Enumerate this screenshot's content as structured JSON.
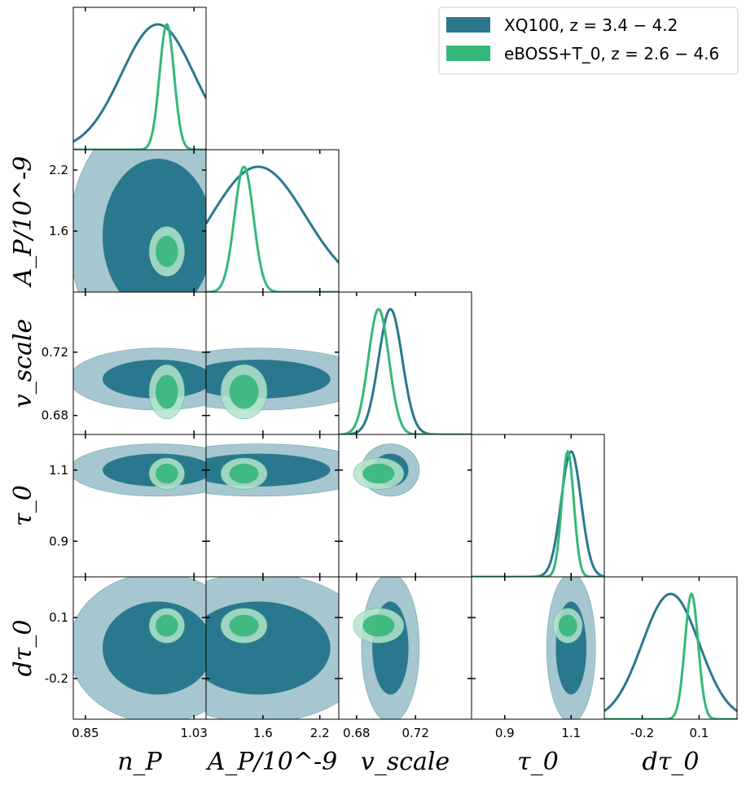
{
  "chart_data": {
    "type": "corner",
    "params": [
      {
        "label": "n_P",
        "ticks": [
          "0.85",
          "1.03"
        ],
        "tick_values": [
          0.85,
          1.03
        ],
        "range": [
          0.83,
          1.05
        ]
      },
      {
        "label": "A_P/10^-9",
        "ticks": [
          "1.6",
          "2.2"
        ],
        "tick_values": [
          1.6,
          2.2
        ],
        "range": [
          1.0,
          2.4
        ]
      },
      {
        "label": "v_scale",
        "ticks": [
          "0.68",
          "0.72"
        ],
        "tick_values": [
          0.68,
          0.72
        ],
        "range": [
          0.668,
          0.758
        ]
      },
      {
        "label": "τ_0",
        "ticks": [
          "0.9",
          "1.1"
        ],
        "tick_values": [
          0.9,
          1.1
        ],
        "range": [
          0.8,
          1.2
        ]
      },
      {
        "label": "dτ_0",
        "ticks": [
          "-0.2",
          "0.1"
        ],
        "tick_values": [
          -0.2,
          0.1
        ],
        "range": [
          -0.4,
          0.3
        ]
      }
    ],
    "series": [
      {
        "name": "XQ100, z = 3.4 − 4.2",
        "line_color": "#2a788e",
        "fill_inner": "#2a788e",
        "fill_outer": "#a6c6d0",
        "means": [
          0.97,
          1.55,
          0.703,
          1.1,
          -0.05
        ],
        "sigmas": [
          0.06,
          0.5,
          0.008,
          0.03,
          0.15
        ]
      },
      {
        "name": "eBOSS+T_0, z = 2.6 − 4.6",
        "line_color": "#35b779",
        "fill_inner": "#35b779",
        "fill_outer": "#b3e4ca",
        "means": [
          0.985,
          1.4,
          0.695,
          1.09,
          0.06
        ],
        "sigmas": [
          0.012,
          0.1,
          0.007,
          0.018,
          0.035
        ]
      }
    ],
    "legend": {
      "position": "top-right",
      "entries": [
        "XQ100, z = 3.4 − 4.2",
        "eBOSS+T_0, z = 2.6 − 4.6"
      ]
    }
  }
}
